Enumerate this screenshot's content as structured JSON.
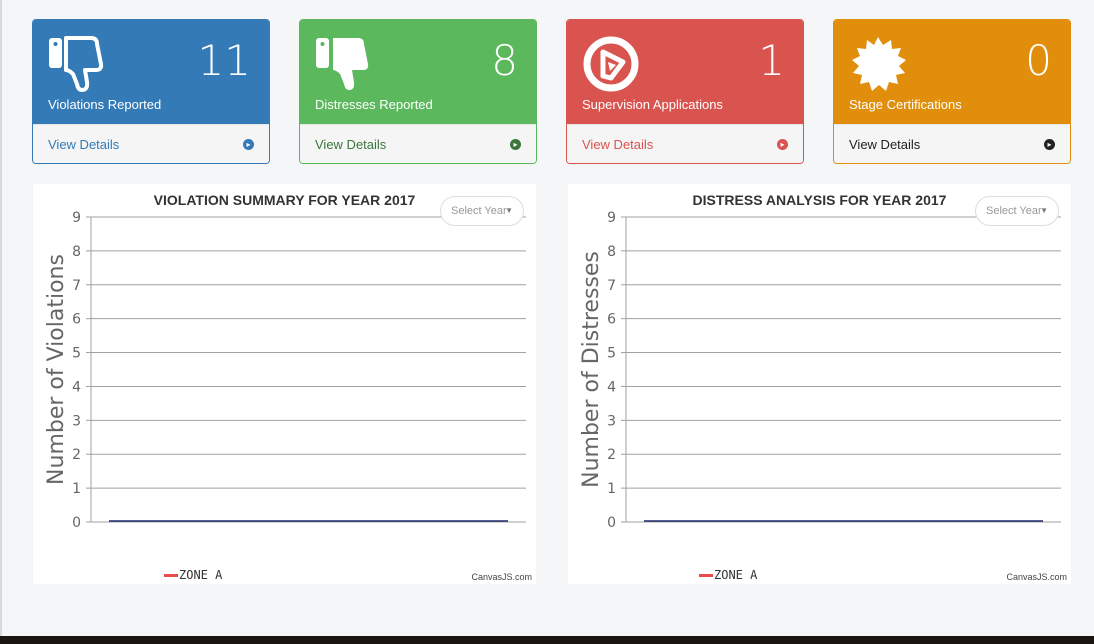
{
  "cards": [
    {
      "id": "violations",
      "count": "11",
      "label": "Violations Reported",
      "link": "View Details",
      "icon": "thumbs-down-icon",
      "color": "#337ab7",
      "link_color": "#337ab7"
    },
    {
      "id": "distresses",
      "count": "8",
      "label": "Distresses Reported",
      "link": "View Details",
      "icon": "thumbs-down-icon",
      "color": "#5cb85c",
      "link_color": "#3c763d"
    },
    {
      "id": "supervision",
      "count": "1",
      "label": "Supervision Applications",
      "link": "View Details",
      "icon": "play-circle-icon",
      "color": "#d9534f",
      "link_color": "#d9534f"
    },
    {
      "id": "stage",
      "count": "0",
      "label": "Stage Certifications",
      "link": "View Details",
      "icon": "certificate-icon",
      "color": "#e08e0b",
      "link_color": "#222222"
    }
  ],
  "charts": [
    {
      "id": "violation-summary",
      "select_placeholder": "Select Year",
      "credit": "CanvasJS.com",
      "chart_data": {
        "type": "line",
        "title": "VIOLATION SUMMARY FOR YEAR 2017",
        "ylabel": "Number of Violations",
        "xlabel": "",
        "ylim": [
          0,
          9
        ],
        "y_ticks": [
          "0",
          "1",
          "2",
          "3",
          "4",
          "5",
          "6",
          "7",
          "8",
          "9"
        ],
        "grid": true,
        "legend_position": "bottom-left",
        "series": [
          {
            "name": "ZONE A",
            "color": "#e84c4c",
            "line_color": "#1f2a6e",
            "values": [
              0,
              0
            ]
          }
        ]
      }
    },
    {
      "id": "distress-analysis",
      "select_placeholder": "Select Year",
      "credit": "CanvasJS.com",
      "chart_data": {
        "type": "line",
        "title": "DISTRESS ANALYSIS FOR YEAR 2017",
        "ylabel": "Number of Distresses",
        "xlabel": "",
        "ylim": [
          0,
          9
        ],
        "y_ticks": [
          "0",
          "1",
          "2",
          "3",
          "4",
          "5",
          "6",
          "7",
          "8",
          "9"
        ],
        "grid": true,
        "legend_position": "bottom-left",
        "series": [
          {
            "name": "ZONE A",
            "color": "#e84c4c",
            "line_color": "#1f2a6e",
            "values": [
              0,
              0
            ]
          }
        ]
      }
    }
  ]
}
